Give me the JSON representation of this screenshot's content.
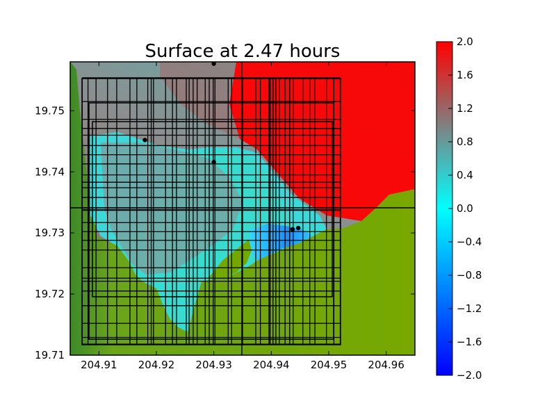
{
  "chart_data": {
    "type": "heatmap",
    "title": "Surface at 2.47 hours",
    "xlabel": "",
    "ylabel": "",
    "xlim": [
      204.905,
      204.965
    ],
    "ylim": [
      19.71,
      19.758
    ],
    "xticks": [
      "204.91",
      "204.92",
      "204.93",
      "204.94",
      "204.95",
      "204.96"
    ],
    "xtick_values": [
      204.91,
      204.92,
      204.93,
      204.94,
      204.95,
      204.96
    ],
    "yticks": [
      "19.71",
      "19.72",
      "19.73",
      "19.74",
      "19.75"
    ],
    "ytick_values": [
      19.71,
      19.72,
      19.73,
      19.74,
      19.75
    ],
    "colorbar": {
      "range": [
        -2.0,
        2.0
      ],
      "ticks": [
        "−2.0",
        "−1.6",
        "−1.2",
        "−0.8",
        "−0.4",
        "0.0",
        "0.4",
        "0.8",
        "1.2",
        "1.6",
        "2.0"
      ],
      "tick_values": [
        -2.0,
        -1.6,
        -1.2,
        -0.8,
        -0.4,
        0.0,
        0.4,
        0.8,
        1.2,
        1.6,
        2.0
      ],
      "colors": [
        "#0000ff",
        "#00ffff",
        "#808080",
        "#ff0000"
      ]
    },
    "colors": {
      "land": "#6fa800",
      "land_shadow": "#4a9a20",
      "deep_water": "#ff0000",
      "mid_water": "#8a8a8a",
      "shallow_water": "#30e6e6",
      "trough": "#1f9cff"
    },
    "gauges": [
      {
        "x": 204.93,
        "y": 19.7577
      },
      {
        "x": 204.918,
        "y": 19.7452
      },
      {
        "x": 204.93,
        "y": 19.7416
      },
      {
        "x": 204.9437,
        "y": 19.7306
      },
      {
        "x": 204.9447,
        "y": 19.7308
      }
    ],
    "grid_x": [
      204.9071,
      204.9081,
      204.9095,
      204.9115,
      204.9131,
      204.9154,
      204.9166,
      204.9185,
      204.9191,
      204.9195,
      204.9216,
      204.9228,
      204.9235,
      204.9252,
      204.9257,
      204.9264,
      204.9271,
      204.9285,
      204.9292,
      204.9299,
      204.9302,
      204.9325,
      204.9331,
      204.935,
      204.9373,
      204.9381,
      204.9396,
      204.9398,
      204.9403,
      204.9408,
      204.9414,
      204.9424,
      204.9432,
      204.9438,
      204.9455,
      204.9467,
      204.9476,
      204.9496,
      204.9509,
      204.952
    ],
    "grid_y": [
      19.7118,
      19.7129,
      19.7152,
      19.7181,
      19.7205,
      19.7221,
      19.7226,
      19.7243,
      19.7272,
      19.7288,
      19.7302,
      19.7317,
      19.7337,
      19.7338,
      19.7341,
      19.7358,
      19.7374,
      19.7383,
      19.7395,
      19.7413,
      19.7428,
      19.7443,
      19.746,
      19.7471,
      19.7486,
      19.7515,
      19.7554
    ]
  }
}
